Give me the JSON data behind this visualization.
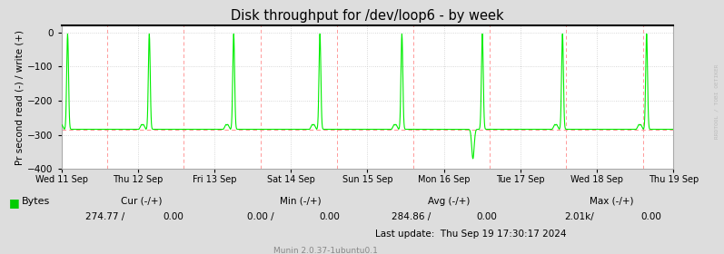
{
  "title": "Disk throughput for /dev/loop6 - by week",
  "ylabel": "Pr second read (-) / write (+)",
  "ylim": [
    -400,
    20
  ],
  "yticks": [
    0,
    -100,
    -200,
    -300,
    -400
  ],
  "bg_color": "#DDDDDD",
  "plot_bg_color": "#FFFFFF",
  "grid_color": "#CCCCCC",
  "line_color": "#00EE00",
  "dashed_line_color": "#FF9999",
  "axis_text_color": "#000000",
  "legend_label": "Bytes",
  "legend_color": "#00CC00",
  "x_labels": [
    "Wed 11 Sep",
    "Thu 12 Sep",
    "Fri 13 Sep",
    "Sat 14 Sep",
    "Sun 15 Sep",
    "Mon 16 Sep",
    "Tue 17 Sep",
    "Wed 18 Sep",
    "Thu 19 Sep"
  ],
  "footer_text": "Munin 2.0.37-1ubuntu0.1",
  "watermark": "RRDTOOL / TOBI OETIKER",
  "baseline": -284,
  "n_points": 2016,
  "total_days": 8,
  "spike_days": [
    0.08,
    1.15,
    2.25,
    3.38,
    4.45,
    5.5,
    6.55,
    7.65
  ],
  "spike_peak": -5,
  "spike_sigma": 3,
  "prespikeblip_offsets": [
    -25,
    -20
  ],
  "prespikeblip_val": -270,
  "deep_spike_day": 5.38,
  "deep_spike_val": -370,
  "deep_spike_sigma": 4
}
